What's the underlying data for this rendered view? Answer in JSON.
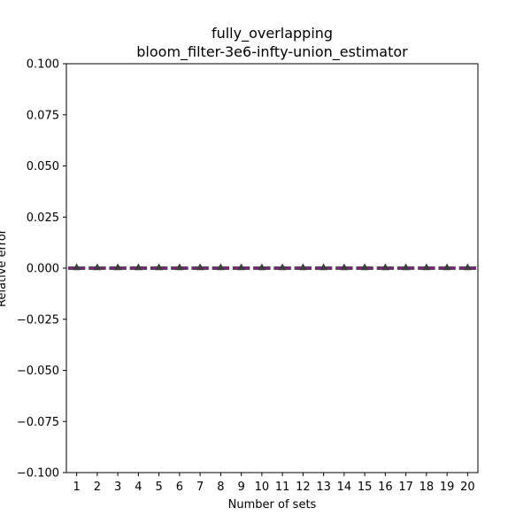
{
  "chart_data": {
    "type": "box",
    "title_line1": "fully_overlapping",
    "title_line2": "bloom_filter-3e6-infty-union_estimator",
    "xlabel": "Number of sets",
    "ylabel": "Relative error",
    "categories": [
      "1",
      "2",
      "3",
      "4",
      "5",
      "6",
      "7",
      "8",
      "9",
      "10",
      "11",
      "12",
      "13",
      "14",
      "15",
      "16",
      "17",
      "18",
      "19",
      "20"
    ],
    "ylim": [
      -0.1,
      0.1
    ],
    "yticks": [
      0.1,
      0.075,
      0.05,
      0.025,
      0.0,
      -0.025,
      -0.05,
      -0.075,
      -0.1
    ],
    "ytick_labels": [
      "0.100",
      "0.075",
      "0.050",
      "0.025",
      "0.000",
      "−0.025",
      "−0.050",
      "−0.075",
      "−0.100"
    ],
    "series": [
      {
        "values_median": [
          0,
          0,
          0,
          0,
          0,
          0,
          0,
          0,
          0,
          0,
          0,
          0,
          0,
          0,
          0,
          0,
          0,
          0,
          0,
          0
        ],
        "values_mean": [
          0.0004,
          0.0004,
          0.0004,
          0.0004,
          0.0004,
          0.0004,
          0.0004,
          0.0004,
          0.0004,
          0.0004,
          0.0004,
          0.0004,
          0.0004,
          0.0004,
          0.0004,
          0.0004,
          0.0004,
          0.0004,
          0.0004,
          0.0004
        ]
      }
    ],
    "colors": {
      "box": "#3d3d3d",
      "median": "#cc00cc",
      "mean_marker": "#3d3d3d",
      "axis": "#000000"
    },
    "grid": false
  }
}
